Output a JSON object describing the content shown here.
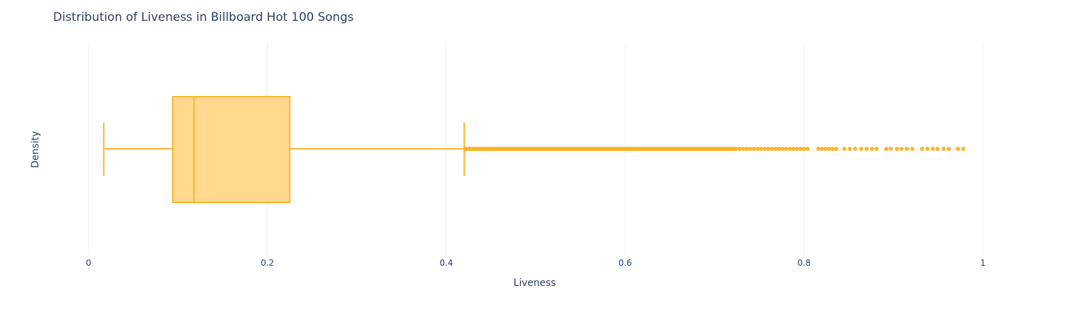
{
  "chart_data": {
    "type": "box",
    "title": "Distribution of Liveness in Billboard Hot 100 Songs",
    "xlabel": "Liveness",
    "ylabel": "Density",
    "x_range": [
      0,
      1
    ],
    "x_ticks": [
      0,
      0.2,
      0.4,
      0.6,
      0.8,
      1
    ],
    "x_tick_labels": [
      "0",
      "0.2",
      "0.4",
      "0.6",
      "0.8",
      "1"
    ],
    "grid": true,
    "orientation": "horizontal",
    "box": {
      "min": 0.017,
      "q1": 0.094,
      "median": 0.118,
      "q3": 0.225,
      "max_whisker": 0.42
    },
    "outlier_summary": {
      "dense_start": 0.421,
      "dense_end": 0.724,
      "sparse_points": [
        0.728,
        0.732,
        0.736,
        0.74,
        0.744,
        0.748,
        0.752,
        0.756,
        0.76,
        0.764,
        0.768,
        0.772,
        0.776,
        0.78,
        0.784,
        0.788,
        0.792,
        0.796,
        0.8,
        0.804,
        0.816,
        0.82,
        0.824,
        0.828,
        0.832,
        0.836,
        0.845,
        0.851,
        0.857,
        0.864,
        0.87,
        0.876,
        0.881,
        0.892,
        0.897,
        0.904,
        0.909,
        0.915,
        0.921,
        0.932,
        0.938,
        0.944,
        0.949,
        0.956,
        0.962,
        0.972,
        0.978
      ]
    },
    "colors": {
      "box_fill": "#ffd98d",
      "box_line": "#ffb32b",
      "grid": "#ebf0f8",
      "text": "#2a3f5f"
    }
  }
}
